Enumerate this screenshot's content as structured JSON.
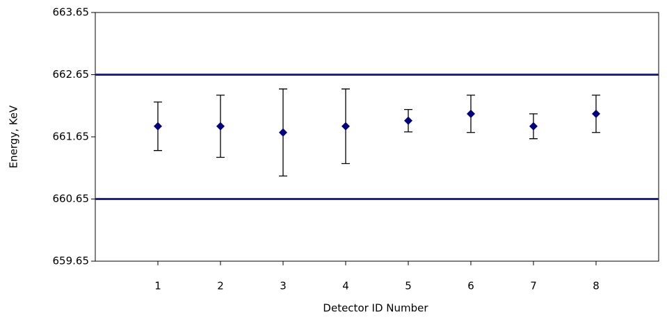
{
  "chart_data": {
    "type": "scatter",
    "x_label": "Detector ID Number",
    "y_label": "Energy, KeV",
    "x": [
      1,
      2,
      3,
      4,
      5,
      6,
      7,
      8
    ],
    "values": [
      661.82,
      661.82,
      661.72,
      661.82,
      661.91,
      662.02,
      661.82,
      662.02
    ],
    "errors": [
      0.39,
      0.5,
      0.7,
      0.6,
      0.18,
      0.3,
      0.2,
      0.3
    ],
    "color": "#000080",
    "xlim": [
      0,
      9
    ],
    "xticks": [
      1,
      2,
      3,
      4,
      5,
      6,
      7,
      8
    ],
    "ylim": [
      659.65,
      663.65
    ],
    "yticks": [
      659.65,
      660.65,
      661.65,
      662.65,
      663.65
    ],
    "reference_lines": [
      662.65,
      660.65
    ],
    "reference_color": "#1f1f8f"
  }
}
